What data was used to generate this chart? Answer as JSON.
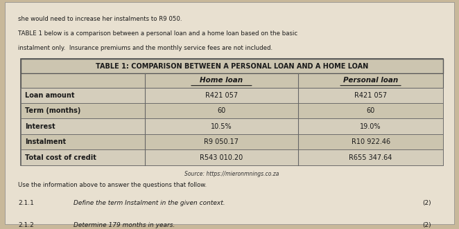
{
  "bg_color": "#c8b89a",
  "paper_color": "#e8e0d0",
  "intro_text_line1": "she would need to increase her instalments to R9 050.",
  "intro_text_line2": "TABLE 1 below is a comparison between a personal loan and a home loan based on the basic",
  "intro_text_line3": "instalment only.  Insurance premiums and the monthly service fees are not included.",
  "table_title": "TABLE 1: COMPARISON BETWEEN A PERSONAL LOAN AND A HOME LOAN",
  "col_headers": [
    "",
    "Home loan",
    "Personal loan"
  ],
  "rows": [
    [
      "Loan amount",
      "R421 057",
      "R421 057"
    ],
    [
      "Term (months)",
      "60",
      "60"
    ],
    [
      "Interest",
      "10.5%",
      "19.0%"
    ],
    [
      "Instalment",
      "R9 050.17",
      "R10 922.46"
    ],
    [
      "Total cost of credit",
      "R543 010.20",
      "R655 347.64"
    ]
  ],
  "source_text": "Source: https://mieronmnings.co.za",
  "footer_line1": "Use the information above to answer the questions that follow.",
  "footer_q1_num": "2.1.1",
  "footer_q1_text": "Define the term Instalment in the given context.",
  "footer_q1_marks": "(2)",
  "footer_q2_num": "2.1.2",
  "footer_q2_text": "Determine 179 months in years.",
  "footer_q2_marks": "(2)",
  "table_border_color": "#333333",
  "header_bg": "#d0c8b8",
  "row_bg_odd": "#e0d8c8",
  "row_bg_even": "#d8d0c0",
  "text_color": "#1a1a1a"
}
